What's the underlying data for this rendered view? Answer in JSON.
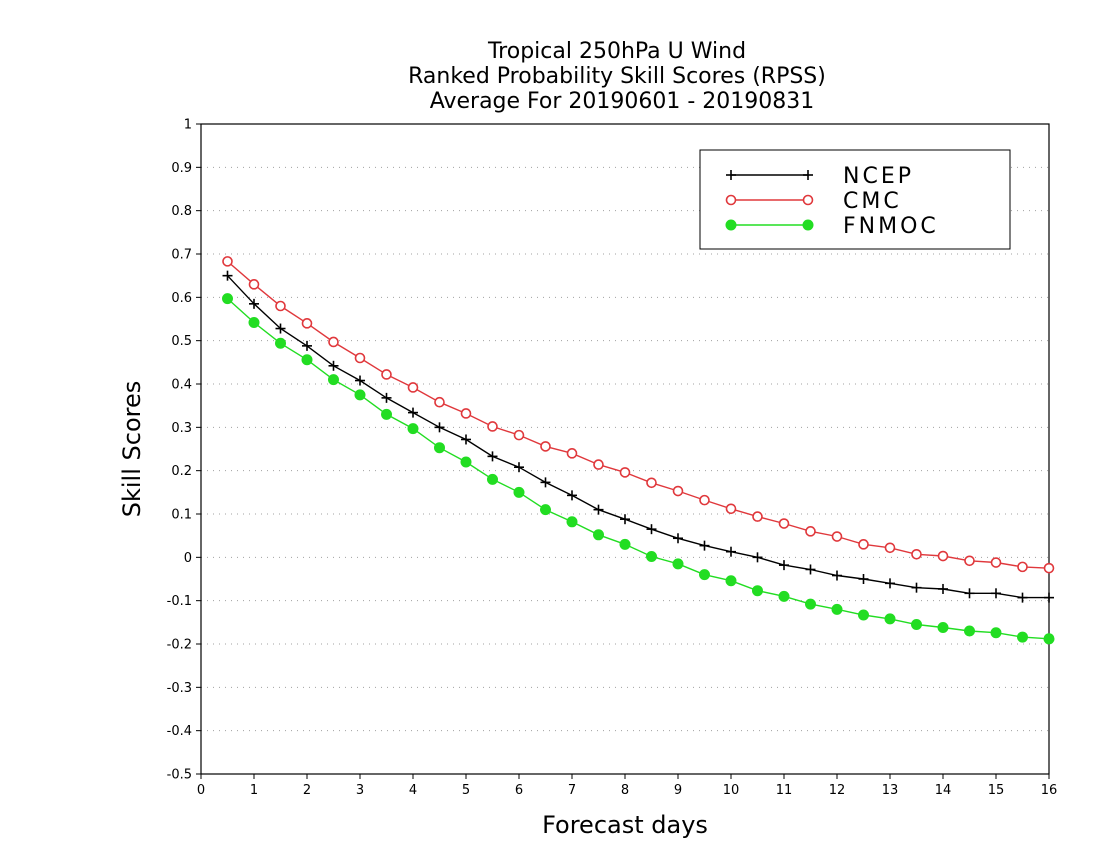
{
  "chart_data": {
    "type": "line",
    "title": [
      "Tropical 250hPa U Wind",
      "Ranked Probability Skill Scores (RPSS)",
      "Average For 20190601 - 20190831"
    ],
    "xlabel": "Forecast days",
    "ylabel": "Skill Scores",
    "xlim": [
      0,
      16
    ],
    "ylim": [
      -0.5,
      1
    ],
    "xticks": [
      0,
      1,
      2,
      3,
      4,
      5,
      6,
      7,
      8,
      9,
      10,
      11,
      12,
      13,
      14,
      15,
      16
    ],
    "yticks": [
      -0.5,
      -0.4,
      -0.3,
      -0.2,
      -0.1,
      0,
      0.1,
      0.2,
      0.3,
      0.4,
      0.5,
      0.6,
      0.7,
      0.8,
      0.9,
      1
    ],
    "grid": "horizontal dotted",
    "legend_position": "top-right",
    "x": [
      0.5,
      1,
      1.5,
      2,
      2.5,
      3,
      3.5,
      4,
      4.5,
      5,
      5.5,
      6,
      6.5,
      7,
      7.5,
      8,
      8.5,
      9,
      9.5,
      10,
      10.5,
      11,
      11.5,
      12,
      12.5,
      13,
      13.5,
      14,
      14.5,
      15,
      15.5,
      16
    ],
    "series": [
      {
        "name": "NCEP",
        "color": "#000000",
        "marker": "plus",
        "values": [
          0.65,
          0.585,
          0.528,
          0.488,
          0.442,
          0.408,
          0.368,
          0.334,
          0.3,
          0.272,
          0.233,
          0.208,
          0.173,
          0.143,
          0.11,
          0.088,
          0.065,
          0.044,
          0.027,
          0.013,
          0.0,
          -0.018,
          -0.028,
          -0.042,
          -0.05,
          -0.06,
          -0.07,
          -0.073,
          -0.083,
          -0.083,
          -0.093,
          -0.093
        ]
      },
      {
        "name": "CMC",
        "color": "#e0383c",
        "marker": "open-circle",
        "values": [
          0.683,
          0.63,
          0.58,
          0.54,
          0.497,
          0.46,
          0.422,
          0.392,
          0.358,
          0.332,
          0.302,
          0.282,
          0.256,
          0.24,
          0.214,
          0.196,
          0.172,
          0.153,
          0.132,
          0.112,
          0.094,
          0.078,
          0.06,
          0.048,
          0.03,
          0.022,
          0.007,
          0.003,
          -0.008,
          -0.012,
          -0.022,
          -0.025
        ]
      },
      {
        "name": "FNMOC",
        "color": "#22dd22",
        "marker": "filled-circle",
        "values": [
          0.597,
          0.542,
          0.494,
          0.456,
          0.41,
          0.375,
          0.33,
          0.297,
          0.253,
          0.22,
          0.18,
          0.15,
          0.11,
          0.082,
          0.052,
          0.03,
          0.002,
          -0.015,
          -0.04,
          -0.054,
          -0.077,
          -0.09,
          -0.108,
          -0.12,
          -0.133,
          -0.142,
          -0.155,
          -0.162,
          -0.17,
          -0.174,
          -0.184,
          -0.188
        ]
      }
    ]
  }
}
